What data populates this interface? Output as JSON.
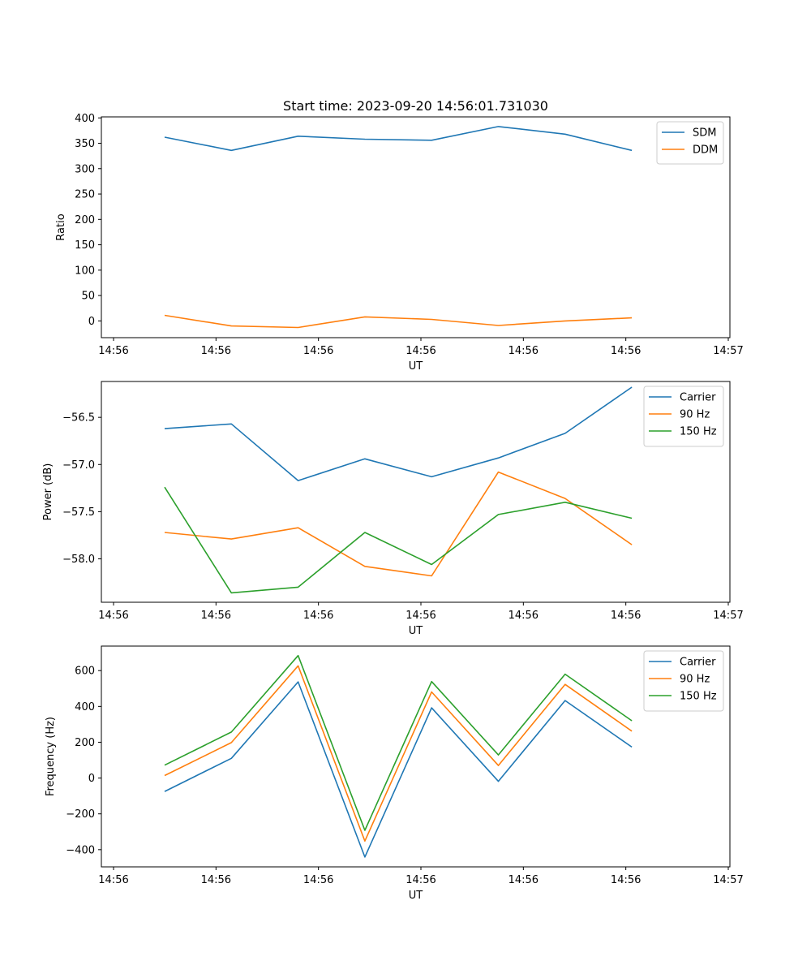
{
  "figure": {
    "title": "Start time: 2023-09-20 14:56:01.731030"
  },
  "colors": {
    "blue": "#1f77b4",
    "orange": "#ff7f0e",
    "green": "#2ca02c"
  },
  "chart_data": [
    {
      "type": "line",
      "title": "Start time: 2023-09-20 14:56:01.731030",
      "xlabel": "UT",
      "ylabel": "Ratio",
      "x": [
        1,
        2,
        3,
        4,
        5,
        6,
        7,
        8
      ],
      "xlim": [
        0,
        9.15
      ],
      "x_ticks": [
        0,
        1.54,
        3.08,
        4.62,
        6.16,
        7.7,
        9.24
      ],
      "x_tick_labels": [
        "14:56",
        "14:56",
        "14:56",
        "14:56",
        "14:56",
        "14:56",
        "14:57"
      ],
      "ylim": [
        -33,
        402
      ],
      "y_ticks": [
        0,
        50,
        100,
        150,
        200,
        250,
        300,
        350,
        400
      ],
      "y_tick_labels": [
        "0",
        "50",
        "100",
        "150",
        "200",
        "250",
        "300",
        "350",
        "400"
      ],
      "legend_position": "top-right",
      "series": [
        {
          "name": "SDM",
          "color": "#1f77b4",
          "values": [
            362,
            336,
            364,
            358,
            356,
            383,
            368,
            336
          ]
        },
        {
          "name": "DDM",
          "color": "#ff7f0e",
          "values": [
            11,
            -10,
            -13,
            8,
            3,
            -9,
            0,
            6
          ]
        }
      ]
    },
    {
      "type": "line",
      "title": "",
      "xlabel": "UT",
      "ylabel": "Power (dB)",
      "x": [
        1,
        2,
        3,
        4,
        5,
        6,
        7,
        8
      ],
      "xlim": [
        0,
        9.15
      ],
      "x_ticks": [
        0,
        1.54,
        3.08,
        4.62,
        6.16,
        7.7,
        9.24
      ],
      "x_tick_labels": [
        "14:56",
        "14:56",
        "14:56",
        "14:56",
        "14:56",
        "14:56",
        "14:57"
      ],
      "ylim": [
        -58.46,
        -56.12
      ],
      "y_ticks": [
        -58.0,
        -57.5,
        -57.0,
        -56.5
      ],
      "y_tick_labels": [
        "−58.0",
        "−57.5",
        "−57.0",
        "−56.5"
      ],
      "legend_position": "top-right",
      "series": [
        {
          "name": "Carrier",
          "color": "#1f77b4",
          "values": [
            -56.62,
            -56.57,
            -57.17,
            -56.94,
            -57.13,
            -56.93,
            -56.67,
            -56.18
          ]
        },
        {
          "name": "90 Hz",
          "color": "#ff7f0e",
          "values": [
            -57.72,
            -57.79,
            -57.67,
            -58.08,
            -58.18,
            -57.08,
            -57.36,
            -57.85
          ]
        },
        {
          "name": "150 Hz",
          "color": "#2ca02c",
          "values": [
            -57.24,
            -58.36,
            -58.3,
            -57.72,
            -58.06,
            -57.53,
            -57.4,
            -57.57
          ]
        }
      ]
    },
    {
      "type": "line",
      "title": "",
      "xlabel": "UT",
      "ylabel": "Frequency (Hz)",
      "x": [
        1,
        2,
        3,
        4,
        5,
        6,
        7,
        8
      ],
      "xlim": [
        0,
        9.15
      ],
      "x_ticks": [
        0,
        1.54,
        3.08,
        4.62,
        6.16,
        7.7,
        9.24
      ],
      "x_tick_labels": [
        "14:56",
        "14:56",
        "14:56",
        "14:56",
        "14:56",
        "14:56",
        "14:57"
      ],
      "ylim": [
        -496,
        737
      ],
      "y_ticks": [
        -400,
        -200,
        0,
        200,
        400,
        600
      ],
      "y_tick_labels": [
        "−400",
        "−200",
        "0",
        "200",
        "400",
        "600"
      ],
      "legend_position": "top-right",
      "series": [
        {
          "name": "Carrier",
          "color": "#1f77b4",
          "values": [
            -75,
            110,
            537,
            -441,
            392,
            -18,
            433,
            173
          ]
        },
        {
          "name": "90 Hz",
          "color": "#ff7f0e",
          "values": [
            14,
            198,
            627,
            -352,
            481,
            70,
            523,
            262
          ]
        },
        {
          "name": "150 Hz",
          "color": "#2ca02c",
          "values": [
            72,
            257,
            684,
            -292,
            539,
            129,
            580,
            320
          ]
        }
      ]
    }
  ]
}
